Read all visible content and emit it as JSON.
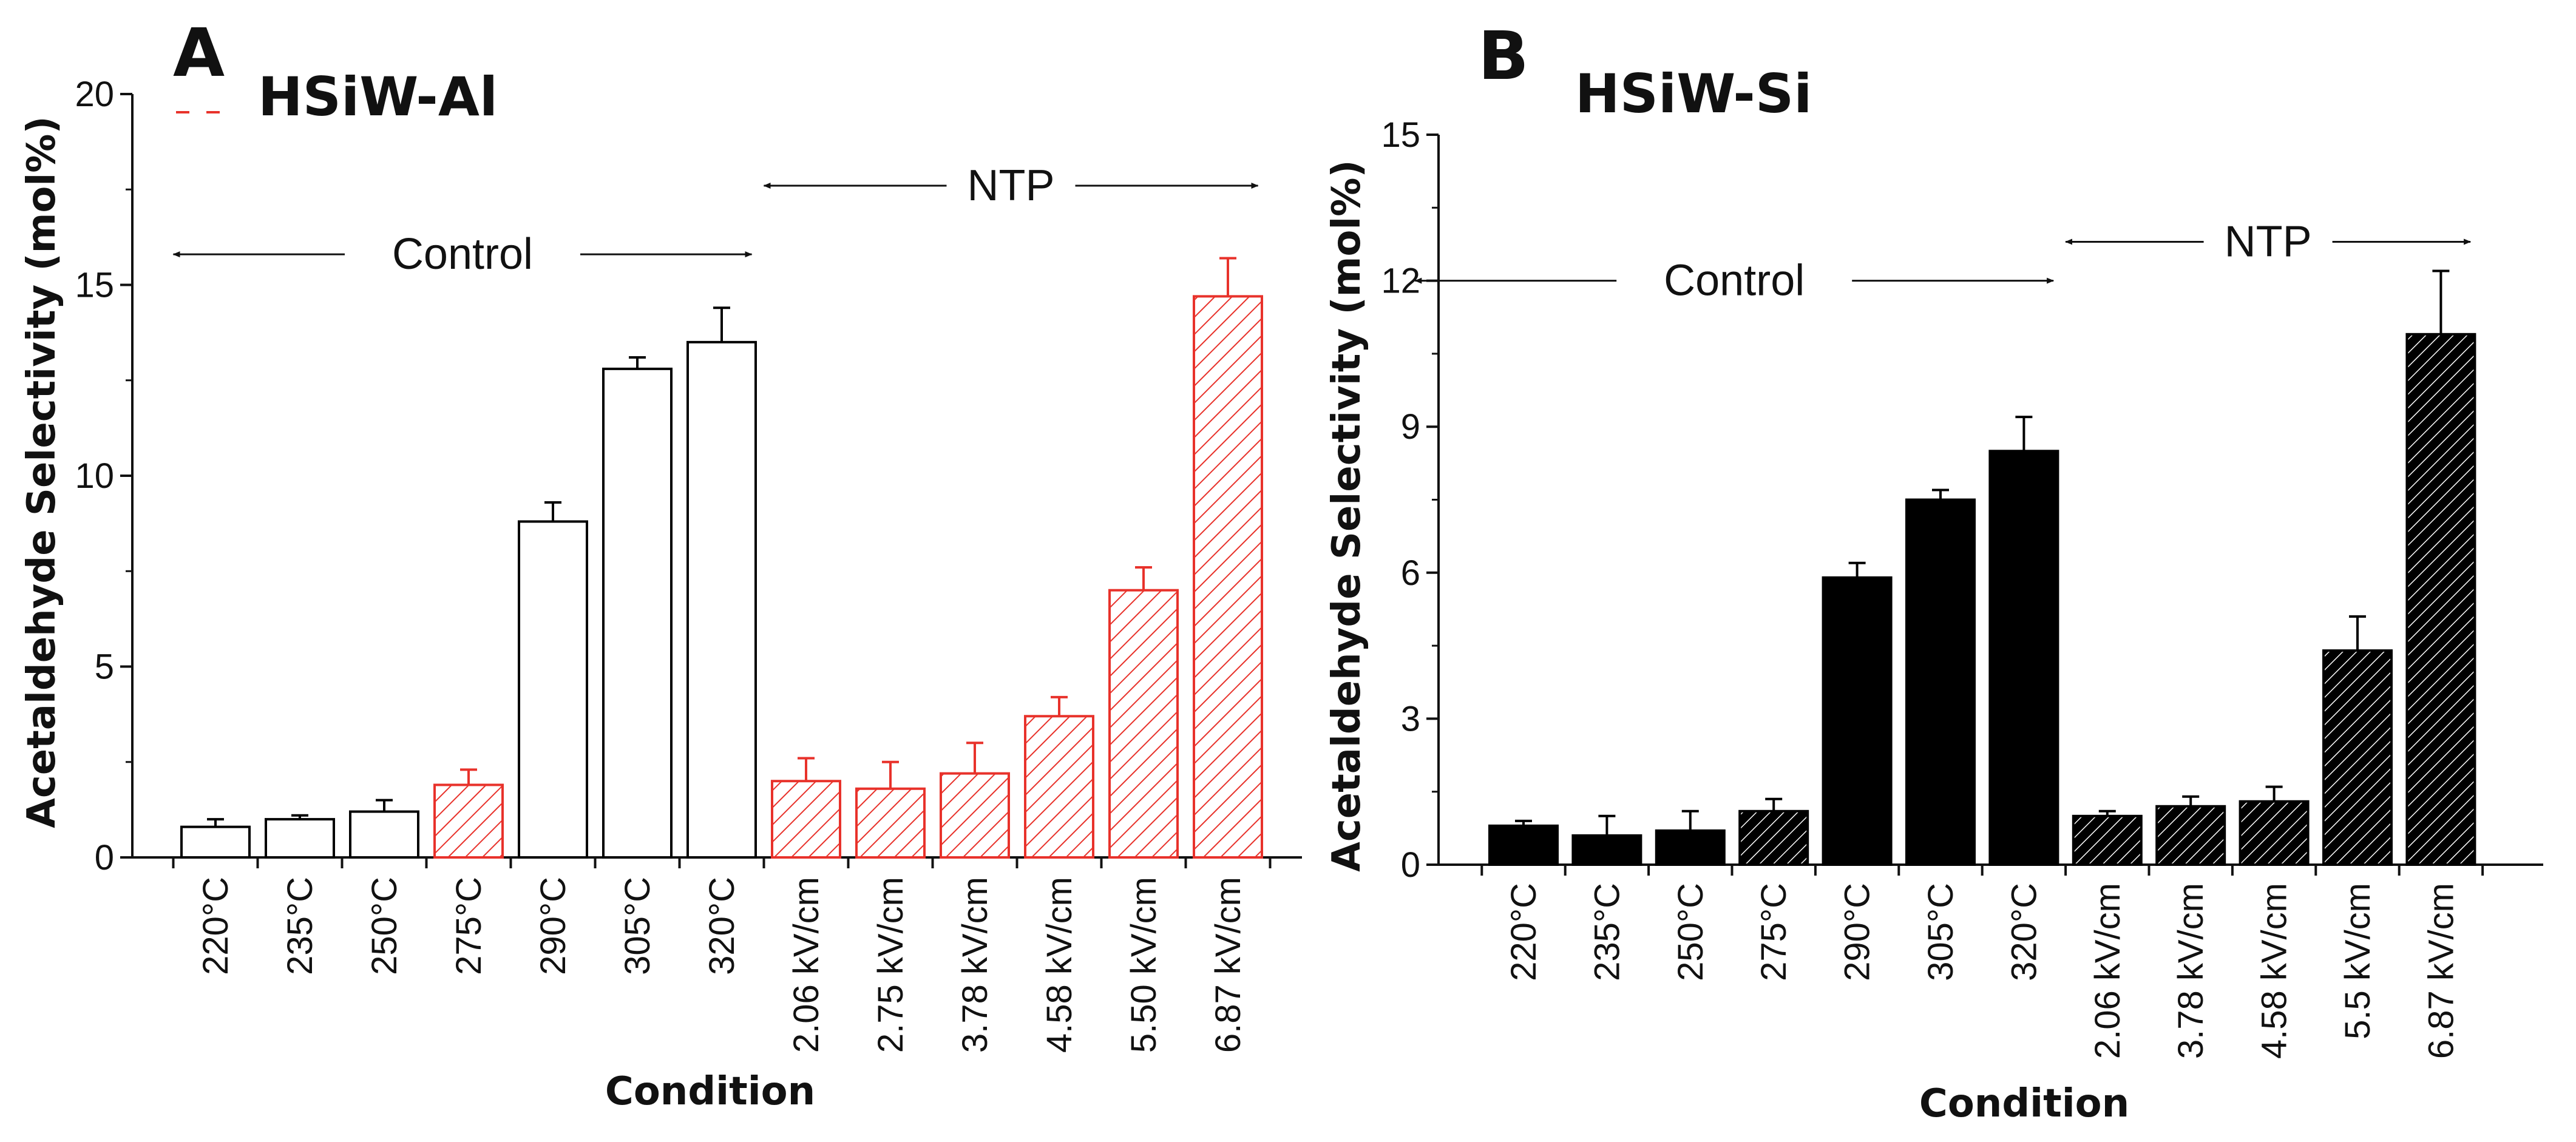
{
  "chart_data": [
    {
      "panel": "A",
      "title": "HSiW-Al",
      "type": "bar",
      "xlabel": "Condition",
      "ylabel": "Acetaldehyde Selectivity (mol%)",
      "ylim": [
        0,
        20
      ],
      "yticks": [
        "0",
        "5",
        "10",
        "15",
        "20"
      ],
      "categories": [
        "220°C",
        "235°C",
        "250°C",
        "275°C",
        "290°C",
        "305°C",
        "320°C",
        "2.06 kV/cm",
        "2.75 kV/cm",
        "3.78 kV/cm",
        "4.58 kV/cm",
        "5.50 kV/cm",
        "6.87 kV/cm"
      ],
      "values": [
        0.8,
        1.0,
        1.2,
        1.9,
        8.8,
        12.8,
        13.5,
        2.0,
        1.8,
        2.2,
        3.7,
        7.0,
        14.7
      ],
      "errors": [
        0.2,
        0.1,
        0.3,
        0.4,
        0.5,
        0.3,
        0.9,
        0.6,
        0.7,
        0.8,
        0.5,
        0.6,
        1.0
      ],
      "styles": [
        "open",
        "open",
        "open",
        "hatched",
        "open",
        "open",
        "open",
        "hatched",
        "hatched",
        "hatched",
        "hatched",
        "hatched",
        "hatched"
      ],
      "colors": {
        "hatch": "#e8322b",
        "open": "#000000"
      },
      "annotations": [
        {
          "label": "Control",
          "from_index": 0,
          "to_index": 6,
          "y": 15.8
        },
        {
          "label": "NTP",
          "from_index": 7,
          "to_index": 12,
          "y": 17.6
        }
      ]
    },
    {
      "panel": "B",
      "title": "HSiW-Si",
      "type": "bar",
      "xlabel": "Condition",
      "ylabel": "Acetaldehyde Selectivity (mol%)",
      "ylim": [
        0,
        15
      ],
      "yticks": [
        "0",
        "3",
        "6",
        "9",
        "12",
        "15"
      ],
      "categories": [
        "220°C",
        "235°C",
        "250°C",
        "275°C",
        "290°C",
        "305°C",
        "320°C",
        "2.06 kV/cm",
        "3.78 kV/cm",
        "4.58 kV/cm",
        "5.5 kV/cm",
        "6.87 kV/cm"
      ],
      "values": [
        0.8,
        0.6,
        0.7,
        1.1,
        5.9,
        7.5,
        8.5,
        1.0,
        1.2,
        1.3,
        4.4,
        10.9
      ],
      "errors": [
        0.1,
        0.4,
        0.4,
        0.25,
        0.3,
        0.2,
        0.7,
        0.1,
        0.2,
        0.3,
        0.7,
        1.3
      ],
      "styles": [
        "solid",
        "solid",
        "solid",
        "hatched",
        "solid",
        "solid",
        "solid",
        "hatched",
        "hatched",
        "hatched",
        "hatched",
        "hatched"
      ],
      "colors": {
        "hatch": "#000000",
        "solid": "#000000"
      },
      "annotations": [
        {
          "label": "Control",
          "from_index": 0,
          "to_index": 6,
          "y": 12.0
        },
        {
          "label": "NTP",
          "from_index": 7,
          "to_index": 11,
          "y": 12.8
        }
      ]
    }
  ]
}
